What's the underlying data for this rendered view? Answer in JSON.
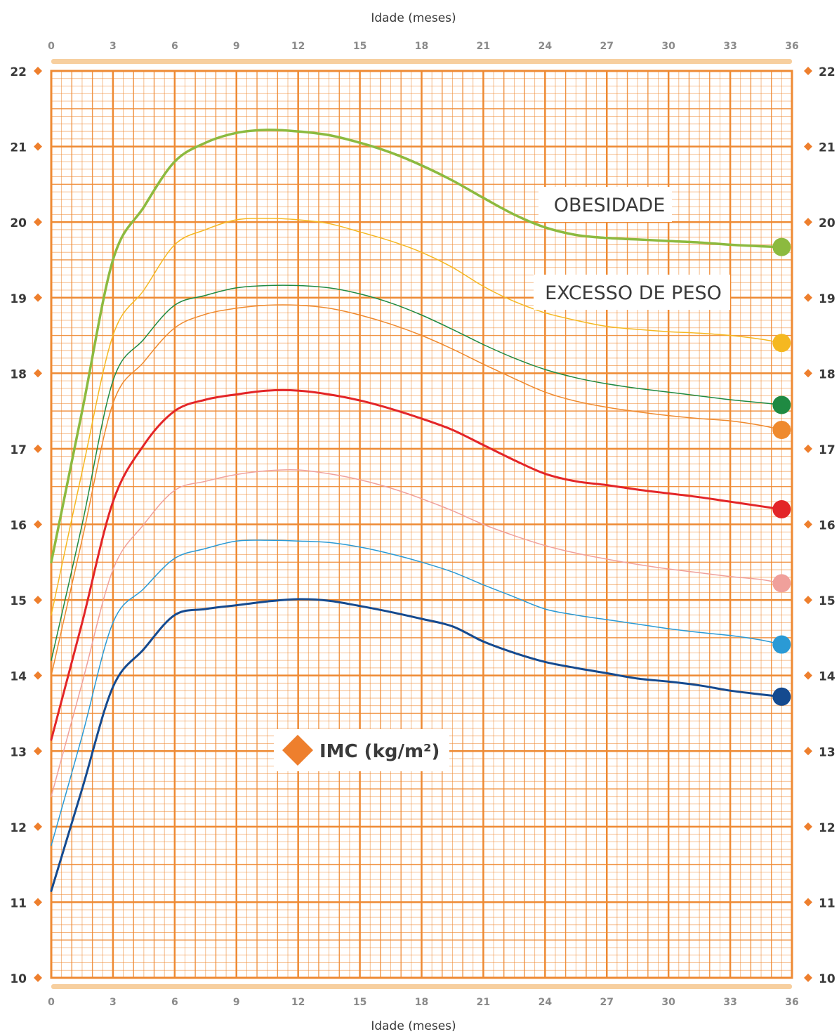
{
  "chart_data": {
    "type": "line",
    "xlabel_top": "Idade (meses)",
    "xlabel_bottom": "Idade (meses)",
    "ylabel": "IMC (kg/m²)",
    "xlim": [
      0,
      36
    ],
    "ylim": [
      10,
      22
    ],
    "x_ticks": [
      0,
      3,
      6,
      9,
      12,
      15,
      18,
      21,
      24,
      27,
      30,
      33,
      36
    ],
    "y_ticks": [
      10,
      11,
      12,
      13,
      14,
      15,
      16,
      17,
      18,
      19,
      20,
      21,
      22
    ],
    "grid": true,
    "annotations": [
      "OBESIDADE",
      "EXCESSO DE PESO"
    ],
    "colors": {
      "grid": "#ee8a33",
      "axis_band": "#f7cf9f",
      "marker": "#ee7f2d"
    },
    "series": [
      {
        "color": "#8cba3f",
        "width": 3.5,
        "x": [
          0,
          1.5,
          3,
          4.5,
          6,
          7.5,
          9,
          10.5,
          12,
          13.5,
          15,
          16.5,
          18,
          19.5,
          21,
          22.5,
          24,
          25.5,
          27,
          28.5,
          30,
          31.5,
          33,
          34.5,
          35.5
        ],
        "y": [
          15.5,
          17.5,
          19.5,
          20.2,
          20.8,
          21.05,
          21.18,
          21.22,
          21.2,
          21.15,
          21.05,
          20.92,
          20.75,
          20.55,
          20.32,
          20.1,
          19.93,
          19.83,
          19.79,
          19.77,
          19.75,
          19.73,
          19.7,
          19.68,
          19.67
        ]
      },
      {
        "color": "#f5b820",
        "width": 1.5,
        "x": [
          0,
          1.5,
          3,
          4.5,
          6,
          7.5,
          9,
          10.5,
          12,
          13.5,
          15,
          16.5,
          18,
          19.5,
          21,
          22.5,
          24,
          25.5,
          27,
          28.5,
          30,
          31.5,
          33,
          34.5,
          35.5
        ],
        "y": [
          14.8,
          16.7,
          18.5,
          19.1,
          19.7,
          19.9,
          20.03,
          20.05,
          20.03,
          19.98,
          19.87,
          19.75,
          19.6,
          19.4,
          19.15,
          18.95,
          18.8,
          18.7,
          18.62,
          18.58,
          18.55,
          18.53,
          18.5,
          18.45,
          18.4
        ]
      },
      {
        "color": "#1f8a42",
        "width": 1.5,
        "x": [
          0,
          1.5,
          3,
          4.5,
          6,
          7.5,
          9,
          10.5,
          12,
          13.5,
          15,
          16.5,
          18,
          19.5,
          21,
          22.5,
          24,
          25.5,
          27,
          28.5,
          30,
          31.5,
          33,
          34.5,
          35.5
        ],
        "y": [
          14.2,
          16.0,
          17.9,
          18.45,
          18.9,
          19.03,
          19.13,
          19.16,
          19.16,
          19.13,
          19.05,
          18.93,
          18.77,
          18.58,
          18.38,
          18.2,
          18.05,
          17.94,
          17.86,
          17.8,
          17.75,
          17.7,
          17.65,
          17.61,
          17.58
        ]
      },
      {
        "color": "#ef8a2e",
        "width": 1.5,
        "x": [
          0,
          1.5,
          3,
          4.5,
          6,
          7.5,
          9,
          10.5,
          12,
          13.5,
          15,
          16.5,
          18,
          19.5,
          21,
          22.5,
          24,
          25.5,
          27,
          28.5,
          30,
          31.5,
          33,
          34.5,
          35.5
        ],
        "y": [
          14.0,
          15.8,
          17.6,
          18.15,
          18.6,
          18.78,
          18.86,
          18.9,
          18.9,
          18.86,
          18.77,
          18.65,
          18.5,
          18.32,
          18.12,
          17.93,
          17.75,
          17.63,
          17.55,
          17.49,
          17.44,
          17.4,
          17.37,
          17.31,
          17.25
        ]
      },
      {
        "color": "#e32528",
        "width": 3,
        "x": [
          0,
          1.5,
          3,
          4.5,
          6,
          7.5,
          9,
          10.5,
          12,
          13.5,
          15,
          16.5,
          18,
          19.5,
          21,
          22.5,
          24,
          25.5,
          27,
          28.5,
          30,
          31.5,
          33,
          34.5,
          35.5
        ],
        "y": [
          13.15,
          14.7,
          16.3,
          17.05,
          17.5,
          17.65,
          17.72,
          17.77,
          17.77,
          17.72,
          17.64,
          17.53,
          17.4,
          17.25,
          17.05,
          16.85,
          16.67,
          16.57,
          16.52,
          16.46,
          16.41,
          16.36,
          16.3,
          16.24,
          16.2
        ]
      },
      {
        "color": "#f0a09b",
        "width": 1.5,
        "x": [
          0,
          1.5,
          3,
          4.5,
          6,
          7.5,
          9,
          10.5,
          12,
          13.5,
          15,
          16.5,
          18,
          19.5,
          21,
          22.5,
          24,
          25.5,
          27,
          28.5,
          30,
          31.5,
          33,
          34.5,
          35.5
        ],
        "y": [
          12.4,
          13.9,
          15.4,
          16.0,
          16.45,
          16.57,
          16.66,
          16.71,
          16.72,
          16.67,
          16.59,
          16.48,
          16.34,
          16.18,
          16.0,
          15.85,
          15.72,
          15.62,
          15.54,
          15.47,
          15.41,
          15.36,
          15.31,
          15.27,
          15.22
        ]
      },
      {
        "color": "#2a9ad5",
        "width": 1.5,
        "x": [
          0,
          1.5,
          3,
          4.5,
          6,
          7.5,
          9,
          10.5,
          12,
          13.5,
          15,
          16.5,
          18,
          19.5,
          21,
          22.5,
          24,
          25.5,
          27,
          28.5,
          30,
          31.5,
          33,
          34.5,
          35.5
        ],
        "y": [
          11.75,
          13.2,
          14.7,
          15.15,
          15.55,
          15.68,
          15.78,
          15.79,
          15.78,
          15.76,
          15.7,
          15.61,
          15.5,
          15.37,
          15.2,
          15.04,
          14.88,
          14.8,
          14.74,
          14.68,
          14.62,
          14.57,
          14.53,
          14.47,
          14.41
        ]
      },
      {
        "color": "#154a8f",
        "width": 3,
        "x": [
          0,
          1.5,
          3,
          4.5,
          6,
          7.5,
          9,
          10.5,
          12,
          13.5,
          15,
          16.5,
          18,
          19.5,
          21,
          22.5,
          24,
          25.5,
          27,
          28.5,
          30,
          31.5,
          33,
          34.5,
          35.5
        ],
        "y": [
          11.15,
          12.5,
          13.85,
          14.35,
          14.8,
          14.88,
          14.93,
          14.98,
          15.01,
          14.99,
          14.92,
          14.84,
          14.75,
          14.65,
          14.45,
          14.3,
          14.18,
          14.1,
          14.03,
          13.96,
          13.92,
          13.87,
          13.8,
          13.75,
          13.72
        ]
      }
    ]
  }
}
